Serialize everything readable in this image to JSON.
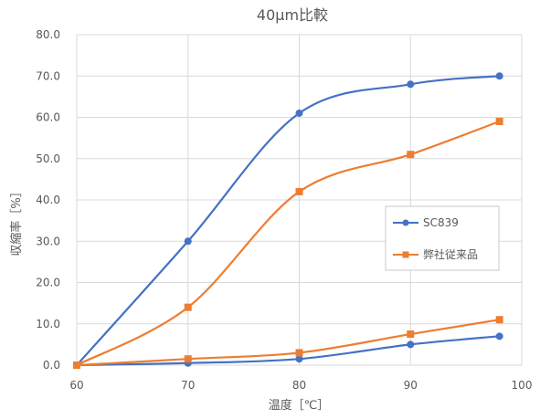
{
  "chart_data": {
    "type": "line",
    "title": "40μm比較",
    "xlabel": "温度［℃］",
    "ylabel": "収縮率［%］",
    "xlim": [
      60,
      100
    ],
    "ylim": [
      0,
      80
    ],
    "x_ticks": [
      "60",
      "70",
      "80",
      "90",
      "100"
    ],
    "y_ticks": [
      "0.0",
      "10.0",
      "20.0",
      "30.0",
      "40.0",
      "50.0",
      "60.0",
      "70.0",
      "80.0"
    ],
    "grid": true,
    "smooth": true,
    "legend_position": "right",
    "series": [
      {
        "name": "SC839",
        "color": "#4472C4",
        "marker": "circle",
        "x": [
          60,
          70,
          80,
          90,
          98
        ],
        "y": [
          0.0,
          30.0,
          61.0,
          68.0,
          70.0
        ]
      },
      {
        "name": "弊社従来品",
        "color": "#ED7D31",
        "marker": "square",
        "x": [
          60,
          70,
          80,
          90,
          98
        ],
        "y": [
          0.0,
          14.0,
          42.0,
          51.0,
          59.0
        ]
      },
      {
        "name": "",
        "color": "#4472C4",
        "marker": "circle",
        "x": [
          60,
          70,
          80,
          90,
          98
        ],
        "y": [
          0.0,
          0.5,
          1.5,
          5.0,
          7.0
        ]
      },
      {
        "name": "",
        "color": "#ED7D31",
        "marker": "square",
        "x": [
          60,
          70,
          80,
          90,
          98
        ],
        "y": [
          0.0,
          1.5,
          3.0,
          7.5,
          11.0
        ]
      }
    ],
    "legend": [
      "SC839",
      "弊社従来品"
    ]
  }
}
